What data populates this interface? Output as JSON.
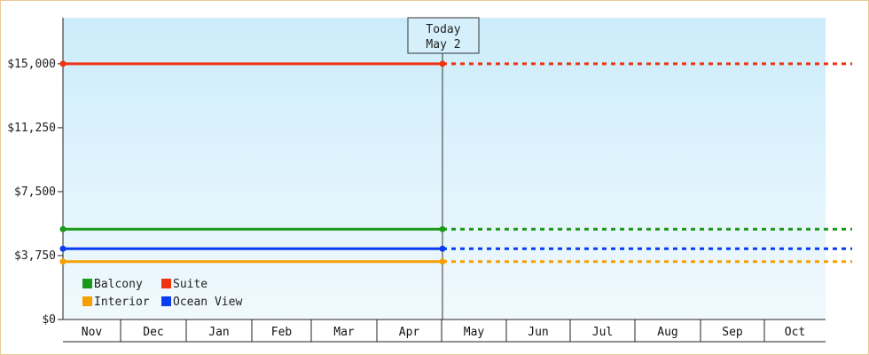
{
  "chart_data": {
    "type": "line",
    "title": "",
    "xlabel": "",
    "ylabel": "",
    "x": [
      "Nov",
      "Dec",
      "Jan",
      "Feb",
      "Mar",
      "Apr",
      "May",
      "Jun",
      "Jul",
      "Aug",
      "Sep",
      "Oct"
    ],
    "y_ticks": [
      "$0",
      "$3,750",
      "$7,500",
      "$11,250",
      "$15,000"
    ],
    "y_tick_values": [
      0,
      3750,
      7500,
      11250,
      15000
    ],
    "ylim": [
      0,
      17700
    ],
    "grid": false,
    "legend_position": "bottom-left",
    "today_marker": {
      "line1": "Today",
      "line2": "May 2",
      "x": "May 2"
    },
    "series": [
      {
        "name": "Balcony",
        "value": 5300,
        "color": "#1a9a1a",
        "solid_until": "May 2",
        "projected_after": "May 2"
      },
      {
        "name": "Suite",
        "value": 15000,
        "color": "#ee3311",
        "solid_until": "May 2",
        "projected_after": "May 2"
      },
      {
        "name": "Interior",
        "value": 3400,
        "color": "#f5a000",
        "solid_until": "May 2",
        "projected_after": "May 2"
      },
      {
        "name": "Ocean View",
        "value": 4150,
        "color": "#0a3cf0",
        "solid_until": "May 2",
        "projected_after": "May 2"
      }
    ],
    "legend": [
      {
        "name": "Balcony",
        "color": "#1a9a1a"
      },
      {
        "name": "Suite",
        "color": "#ee3311"
      },
      {
        "name": "Interior",
        "color": "#f5a000"
      },
      {
        "name": "Ocean View",
        "color": "#0a3cf0"
      }
    ]
  }
}
